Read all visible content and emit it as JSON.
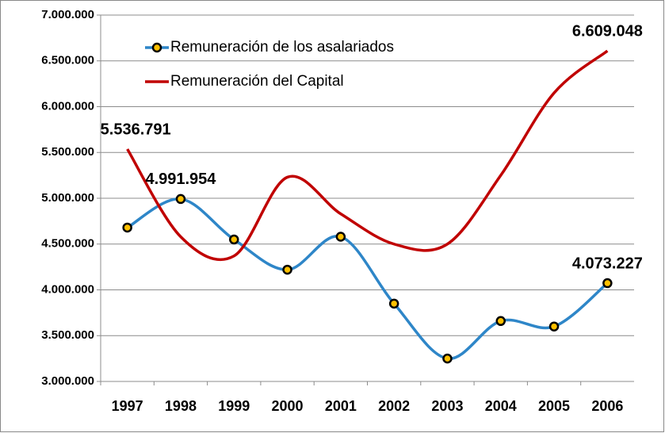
{
  "chart_data": {
    "type": "line",
    "categories": [
      "1997",
      "1998",
      "1999",
      "2000",
      "2001",
      "2002",
      "2003",
      "2004",
      "2005",
      "2006"
    ],
    "series": [
      {
        "name": "Remuneración de los asalariados",
        "color": "#2e86c8",
        "marker": "circle",
        "values": [
          4680000,
          4991954,
          4550000,
          4220000,
          4580000,
          3850000,
          3250000,
          3660000,
          3600000,
          4073227
        ],
        "value_labels": [
          null,
          "4.991.954",
          null,
          null,
          null,
          null,
          null,
          null,
          null,
          "4.073.227"
        ]
      },
      {
        "name": "Remuneración del Capital",
        "color": "#c00000",
        "values": [
          5536791,
          4580000,
          4370000,
          5230000,
          4830000,
          4500000,
          4500000,
          5250000,
          6150000,
          6609048
        ],
        "value_labels": [
          "5.536.791",
          null,
          null,
          null,
          null,
          null,
          null,
          null,
          null,
          "6.609.048"
        ]
      }
    ],
    "ylim": [
      3000000,
      7000000
    ],
    "yticks": [
      {
        "value": 3000000,
        "label": "3.000.000"
      },
      {
        "value": 3500000,
        "label": "3.500.000"
      },
      {
        "value": 4000000,
        "label": "4.000.000"
      },
      {
        "value": 4500000,
        "label": "4.500.000"
      },
      {
        "value": 5000000,
        "label": "5.000.000"
      },
      {
        "value": 5500000,
        "label": "5.500.000"
      },
      {
        "value": 6000000,
        "label": "6.000.000"
      },
      {
        "value": 6500000,
        "label": "6.500.000"
      },
      {
        "value": 7000000,
        "label": "7.000.000"
      }
    ],
    "grid": true,
    "smooth": true,
    "legend": "top-left"
  }
}
